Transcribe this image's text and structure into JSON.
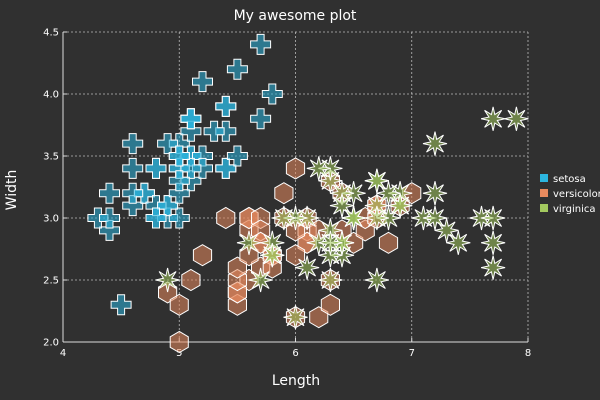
{
  "chart_data": {
    "type": "scatter",
    "title": "My awesome plot",
    "xlabel": "Length",
    "ylabel": "Width",
    "xlim": [
      4,
      8
    ],
    "ylim": [
      2,
      4.5
    ],
    "xticks": [
      4,
      5,
      6,
      7,
      8
    ],
    "yticks": [
      2.0,
      2.5,
      3.0,
      3.5,
      4.0,
      4.5
    ],
    "grid": true,
    "legend_position": "right",
    "background": "#303030",
    "series": [
      {
        "name": "setosa",
        "color": "#2cb5df",
        "marker": "cross",
        "points": [
          [
            5.1,
            3.5
          ],
          [
            4.9,
            3.0
          ],
          [
            4.7,
            3.2
          ],
          [
            4.6,
            3.1
          ],
          [
            5.0,
            3.6
          ],
          [
            5.4,
            3.9
          ],
          [
            4.6,
            3.4
          ],
          [
            5.0,
            3.4
          ],
          [
            4.4,
            2.9
          ],
          [
            4.9,
            3.1
          ],
          [
            5.4,
            3.7
          ],
          [
            4.8,
            3.4
          ],
          [
            4.8,
            3.0
          ],
          [
            4.3,
            3.0
          ],
          [
            5.8,
            4.0
          ],
          [
            5.7,
            4.4
          ],
          [
            5.4,
            3.9
          ],
          [
            5.1,
            3.5
          ],
          [
            5.7,
            3.8
          ],
          [
            5.1,
            3.8
          ],
          [
            5.4,
            3.4
          ],
          [
            5.1,
            3.7
          ],
          [
            4.6,
            3.6
          ],
          [
            5.1,
            3.3
          ],
          [
            4.8,
            3.4
          ],
          [
            5.0,
            3.0
          ],
          [
            5.0,
            3.4
          ],
          [
            5.2,
            3.5
          ],
          [
            5.2,
            3.4
          ],
          [
            4.7,
            3.2
          ],
          [
            4.8,
            3.1
          ],
          [
            5.4,
            3.4
          ],
          [
            5.2,
            4.1
          ],
          [
            5.5,
            4.2
          ],
          [
            4.9,
            3.1
          ],
          [
            5.0,
            3.2
          ],
          [
            5.5,
            3.5
          ],
          [
            4.9,
            3.6
          ],
          [
            4.4,
            3.0
          ],
          [
            5.1,
            3.4
          ],
          [
            5.0,
            3.5
          ],
          [
            4.5,
            2.3
          ],
          [
            4.4,
            3.2
          ],
          [
            5.0,
            3.5
          ],
          [
            5.1,
            3.8
          ],
          [
            4.8,
            3.0
          ],
          [
            5.1,
            3.8
          ],
          [
            4.6,
            3.2
          ],
          [
            5.3,
            3.7
          ],
          [
            5.0,
            3.3
          ]
        ]
      },
      {
        "name": "versicolor",
        "color": "#e88a5e",
        "marker": "hexagon",
        "points": [
          [
            7.0,
            3.2
          ],
          [
            6.4,
            3.2
          ],
          [
            6.9,
            3.1
          ],
          [
            5.5,
            2.3
          ],
          [
            6.5,
            2.8
          ],
          [
            5.7,
            2.8
          ],
          [
            6.3,
            3.3
          ],
          [
            4.9,
            2.4
          ],
          [
            6.6,
            2.9
          ],
          [
            5.2,
            2.7
          ],
          [
            5.0,
            2.0
          ],
          [
            5.9,
            3.0
          ],
          [
            6.0,
            2.2
          ],
          [
            6.1,
            2.9
          ],
          [
            5.6,
            2.9
          ],
          [
            6.7,
            3.1
          ],
          [
            5.6,
            3.0
          ],
          [
            5.8,
            2.7
          ],
          [
            6.2,
            2.2
          ],
          [
            5.6,
            2.5
          ],
          [
            5.9,
            3.2
          ],
          [
            6.1,
            2.8
          ],
          [
            6.3,
            2.5
          ],
          [
            6.1,
            2.8
          ],
          [
            6.4,
            2.9
          ],
          [
            6.6,
            3.0
          ],
          [
            6.8,
            2.8
          ],
          [
            6.7,
            3.0
          ],
          [
            6.0,
            2.9
          ],
          [
            5.7,
            2.6
          ],
          [
            5.5,
            2.4
          ],
          [
            5.5,
            2.4
          ],
          [
            5.8,
            2.7
          ],
          [
            6.0,
            2.7
          ],
          [
            5.4,
            3.0
          ],
          [
            6.0,
            3.4
          ],
          [
            6.7,
            3.1
          ],
          [
            6.3,
            2.3
          ],
          [
            5.6,
            3.0
          ],
          [
            5.5,
            2.5
          ],
          [
            5.5,
            2.6
          ],
          [
            6.1,
            3.0
          ],
          [
            5.8,
            2.6
          ],
          [
            5.0,
            2.3
          ],
          [
            5.6,
            2.7
          ],
          [
            5.7,
            3.0
          ],
          [
            5.7,
            2.9
          ],
          [
            6.2,
            2.9
          ],
          [
            5.1,
            2.5
          ],
          [
            5.7,
            2.8
          ]
        ]
      },
      {
        "name": "virginica",
        "color": "#a3c95f",
        "marker": "star",
        "points": [
          [
            6.3,
            3.3
          ],
          [
            5.8,
            2.7
          ],
          [
            7.1,
            3.0
          ],
          [
            6.3,
            2.9
          ],
          [
            6.5,
            3.0
          ],
          [
            7.6,
            3.0
          ],
          [
            4.9,
            2.5
          ],
          [
            7.3,
            2.9
          ],
          [
            6.7,
            2.5
          ],
          [
            7.2,
            3.6
          ],
          [
            6.5,
            3.2
          ],
          [
            6.4,
            2.7
          ],
          [
            6.8,
            3.0
          ],
          [
            5.7,
            2.5
          ],
          [
            5.8,
            2.8
          ],
          [
            6.4,
            3.2
          ],
          [
            6.5,
            3.0
          ],
          [
            7.7,
            3.8
          ],
          [
            7.7,
            2.6
          ],
          [
            6.0,
            2.2
          ],
          [
            6.9,
            3.2
          ],
          [
            5.6,
            2.8
          ],
          [
            7.7,
            2.8
          ],
          [
            6.3,
            2.7
          ],
          [
            6.7,
            3.3
          ],
          [
            7.2,
            3.2
          ],
          [
            6.2,
            2.8
          ],
          [
            6.1,
            3.0
          ],
          [
            6.4,
            2.8
          ],
          [
            7.2,
            3.0
          ],
          [
            7.4,
            2.8
          ],
          [
            7.9,
            3.8
          ],
          [
            6.4,
            2.8
          ],
          [
            6.3,
            2.8
          ],
          [
            6.1,
            2.6
          ],
          [
            7.7,
            3.0
          ],
          [
            6.3,
            3.4
          ],
          [
            6.4,
            3.1
          ],
          [
            6.0,
            3.0
          ],
          [
            6.9,
            3.1
          ],
          [
            6.7,
            3.1
          ],
          [
            6.9,
            3.1
          ],
          [
            5.8,
            2.7
          ],
          [
            6.8,
            3.2
          ],
          [
            6.7,
            3.3
          ],
          [
            6.7,
            3.0
          ],
          [
            6.3,
            2.5
          ],
          [
            6.5,
            3.0
          ],
          [
            6.2,
            3.4
          ],
          [
            5.9,
            3.0
          ]
        ]
      }
    ]
  }
}
